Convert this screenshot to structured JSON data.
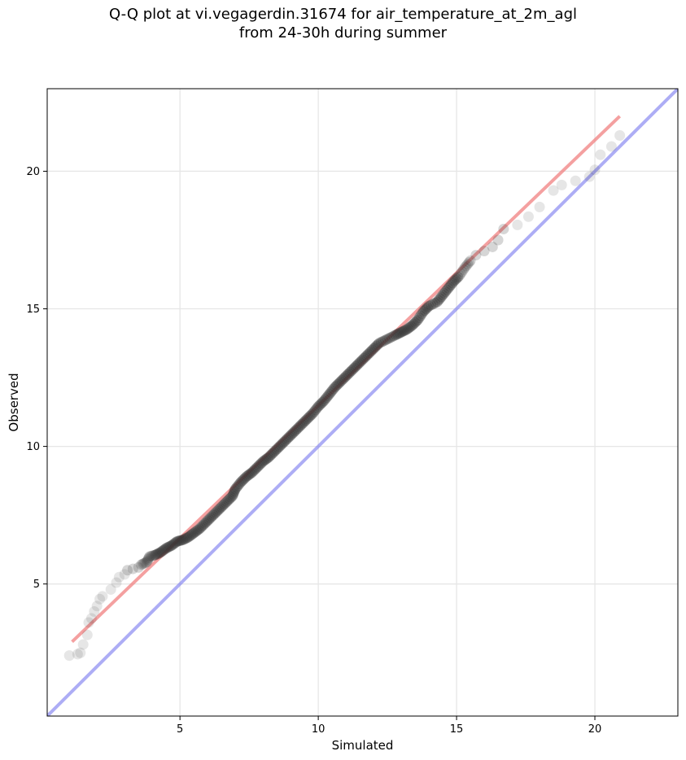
{
  "chart_data": {
    "type": "scatter",
    "title": "Q-Q plot at vi.vegagerdin.31674 for air_temperature_at_2m_agl",
    "subtitle": "from 24-30h during summer",
    "xlabel": "Simulated",
    "ylabel": "Observed",
    "xlim": [
      0.2,
      23.0
    ],
    "ylim": [
      0.2,
      23.0
    ],
    "xticks": [
      5,
      10,
      15,
      20
    ],
    "yticks": [
      5,
      10,
      15,
      20
    ],
    "grid": true,
    "colors": {
      "points": "#333333",
      "fit_line": "#f08080",
      "identity_line": "#7777ee",
      "grid": "#e6e6e6"
    },
    "reference_lines": [
      {
        "kind": "identity",
        "x": [
          0.2,
          23.0
        ],
        "y": [
          0.2,
          23.0
        ]
      },
      {
        "kind": "linear_fit",
        "x": [
          1.1,
          20.9
        ],
        "y": [
          2.9,
          22.0
        ]
      }
    ],
    "quantiles": [
      [
        1.0,
        2.4
      ],
      [
        1.3,
        2.45
      ],
      [
        1.4,
        2.5
      ],
      [
        1.5,
        2.8
      ],
      [
        1.65,
        3.15
      ],
      [
        1.7,
        3.6
      ],
      [
        1.8,
        3.75
      ],
      [
        1.9,
        4.0
      ],
      [
        2.0,
        4.2
      ],
      [
        2.1,
        4.45
      ],
      [
        2.2,
        4.55
      ],
      [
        2.5,
        4.8
      ],
      [
        2.7,
        5.05
      ],
      [
        2.8,
        5.25
      ],
      [
        3.0,
        5.35
      ],
      [
        3.1,
        5.5
      ],
      [
        3.3,
        5.55
      ],
      [
        3.5,
        5.6
      ],
      [
        3.6,
        5.7
      ],
      [
        3.8,
        5.8
      ],
      [
        3.9,
        6.0
      ],
      [
        4.1,
        6.05
      ],
      [
        4.3,
        6.15
      ],
      [
        4.5,
        6.3
      ],
      [
        4.7,
        6.4
      ],
      [
        4.9,
        6.55
      ],
      [
        5.1,
        6.6
      ],
      [
        5.3,
        6.7
      ],
      [
        5.5,
        6.85
      ],
      [
        5.7,
        7.0
      ],
      [
        5.9,
        7.2
      ],
      [
        6.1,
        7.4
      ],
      [
        6.3,
        7.6
      ],
      [
        6.5,
        7.8
      ],
      [
        6.7,
        8.0
      ],
      [
        6.9,
        8.2
      ],
      [
        7.0,
        8.45
      ],
      [
        7.2,
        8.7
      ],
      [
        7.4,
        8.9
      ],
      [
        7.6,
        9.05
      ],
      [
        7.8,
        9.25
      ],
      [
        8.0,
        9.45
      ],
      [
        8.2,
        9.6
      ],
      [
        8.4,
        9.8
      ],
      [
        8.6,
        10.0
      ],
      [
        8.8,
        10.2
      ],
      [
        9.0,
        10.4
      ],
      [
        9.2,
        10.6
      ],
      [
        9.4,
        10.8
      ],
      [
        9.6,
        11.0
      ],
      [
        9.8,
        11.2
      ],
      [
        10.0,
        11.45
      ],
      [
        10.2,
        11.65
      ],
      [
        10.4,
        11.9
      ],
      [
        10.6,
        12.15
      ],
      [
        10.8,
        12.35
      ],
      [
        11.0,
        12.55
      ],
      [
        11.2,
        12.75
      ],
      [
        11.4,
        12.95
      ],
      [
        11.6,
        13.15
      ],
      [
        11.8,
        13.35
      ],
      [
        12.0,
        13.55
      ],
      [
        12.2,
        13.75
      ],
      [
        12.5,
        13.9
      ],
      [
        12.8,
        14.05
      ],
      [
        13.0,
        14.15
      ],
      [
        13.2,
        14.25
      ],
      [
        13.4,
        14.4
      ],
      [
        13.6,
        14.6
      ],
      [
        13.8,
        14.9
      ],
      [
        14.0,
        15.1
      ],
      [
        14.3,
        15.25
      ],
      [
        14.5,
        15.5
      ],
      [
        14.7,
        15.75
      ],
      [
        14.9,
        16.0
      ],
      [
        15.1,
        16.2
      ],
      [
        15.3,
        16.5
      ],
      [
        15.5,
        16.75
      ],
      [
        15.7,
        16.95
      ],
      [
        16.0,
        17.1
      ],
      [
        16.3,
        17.25
      ],
      [
        16.5,
        17.5
      ],
      [
        16.7,
        17.9
      ],
      [
        17.2,
        18.05
      ],
      [
        17.6,
        18.35
      ],
      [
        18.0,
        18.7
      ],
      [
        18.5,
        19.3
      ],
      [
        18.8,
        19.5
      ],
      [
        19.3,
        19.65
      ],
      [
        19.8,
        19.8
      ],
      [
        20.0,
        20.05
      ],
      [
        20.2,
        20.6
      ],
      [
        20.6,
        20.9
      ],
      [
        20.9,
        21.3
      ]
    ]
  }
}
